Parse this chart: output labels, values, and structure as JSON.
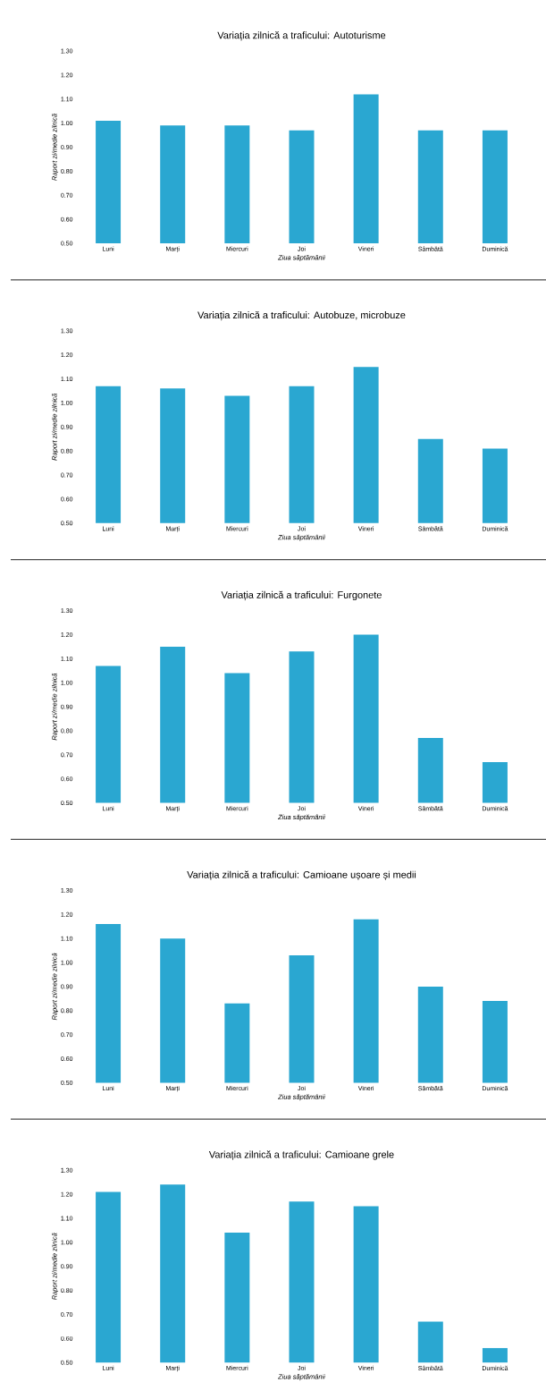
{
  "chart_data": [
    {
      "type": "bar",
      "title": "Variația zilnică a traficului: Autoturisme",
      "xlabel": "Ziua săptămânii",
      "ylabel": "Raport zi/medie zilnică",
      "categories": [
        "Luni",
        "Marți",
        "Miercuri",
        "Joi",
        "Vineri",
        "Sâmbătă",
        "Duminică"
      ],
      "values": [
        1.01,
        0.99,
        0.99,
        0.97,
        1.12,
        0.97,
        0.97
      ],
      "color": "#2aa7d1",
      "ylim": [
        0.5,
        1.3
      ],
      "yticks": [
        {
          "value": 0.5,
          "label": "0.50"
        },
        {
          "value": 0.6,
          "label": "0.60"
        },
        {
          "value": 0.7,
          "label": "0.70"
        },
        {
          "value": 0.8,
          "label": "0.80"
        },
        {
          "value": 0.9,
          "label": "0.90"
        },
        {
          "value": 1.0,
          "label": "1.00"
        },
        {
          "value": 1.1,
          "label": "1.10"
        },
        {
          "value": 1.2,
          "label": "1.20"
        },
        {
          "value": 1.3,
          "label": "1.30"
        }
      ],
      "grid": false
    },
    {
      "type": "bar",
      "title": "Variația zilnică a traficului: Autobuze, microbuze",
      "xlabel": "Ziua săptămânii",
      "ylabel": "Raport zi/medie zilnică",
      "categories": [
        "Luni",
        "Marți",
        "Miercuri",
        "Joi",
        "Vineri",
        "Sâmbătă",
        "Duminică"
      ],
      "values": [
        1.07,
        1.06,
        1.03,
        1.07,
        1.15,
        0.85,
        0.81
      ],
      "color": "#2aa7d1",
      "ylim": [
        0.5,
        1.3
      ],
      "yticks": [
        {
          "value": 0.5,
          "label": "0.50"
        },
        {
          "value": 0.6,
          "label": "0.60"
        },
        {
          "value": 0.7,
          "label": "0.70"
        },
        {
          "value": 0.8,
          "label": "0.80"
        },
        {
          "value": 0.9,
          "label": "0.90"
        },
        {
          "value": 1.0,
          "label": "1.00"
        },
        {
          "value": 1.1,
          "label": "1.10"
        },
        {
          "value": 1.2,
          "label": "1.20"
        },
        {
          "value": 1.3,
          "label": "1.30"
        }
      ],
      "grid": false
    },
    {
      "type": "bar",
      "title": "Variația zilnică a traficului: Furgonete",
      "xlabel": "Ziua săptămânii",
      "ylabel": "Raport zi/medie zilnică",
      "categories": [
        "Luni",
        "Marți",
        "Miercuri",
        "Joi",
        "Vineri",
        "Sâmbătă",
        "Duminică"
      ],
      "values": [
        1.07,
        1.15,
        1.04,
        1.13,
        1.2,
        0.77,
        0.67
      ],
      "color": "#2aa7d1",
      "ylim": [
        0.5,
        1.3
      ],
      "yticks": [
        {
          "value": 0.5,
          "label": "0.50"
        },
        {
          "value": 0.6,
          "label": "0.60"
        },
        {
          "value": 0.7,
          "label": "0.70"
        },
        {
          "value": 0.8,
          "label": "0.80"
        },
        {
          "value": 0.9,
          "label": "0.90"
        },
        {
          "value": 1.0,
          "label": "1.00"
        },
        {
          "value": 1.1,
          "label": "1.10"
        },
        {
          "value": 1.2,
          "label": "1.20"
        },
        {
          "value": 1.3,
          "label": "1.30"
        }
      ],
      "grid": false
    },
    {
      "type": "bar",
      "title": "Variația zilnică a traficului: Camioane ușoare și medii",
      "xlabel": "Ziua săptămânii",
      "ylabel": "Raport zi/medie zilnică",
      "categories": [
        "Luni",
        "Marți",
        "Miercuri",
        "Joi",
        "Vineri",
        "Sâmbătă",
        "Duminică"
      ],
      "values": [
        1.16,
        1.1,
        0.83,
        1.03,
        1.18,
        0.9,
        0.84
      ],
      "color": "#2aa7d1",
      "ylim": [
        0.5,
        1.3
      ],
      "yticks": [
        {
          "value": 0.5,
          "label": "0.50"
        },
        {
          "value": 0.6,
          "label": "0.60"
        },
        {
          "value": 0.7,
          "label": "0.70"
        },
        {
          "value": 0.8,
          "label": "0.80"
        },
        {
          "value": 0.9,
          "label": "0.90"
        },
        {
          "value": 1.0,
          "label": "1.00"
        },
        {
          "value": 1.1,
          "label": "1.10"
        },
        {
          "value": 1.2,
          "label": "1.20"
        },
        {
          "value": 1.3,
          "label": "1.30"
        }
      ],
      "grid": false
    },
    {
      "type": "bar",
      "title": "Variația zilnică a traficului: Camioane grele",
      "xlabel": "Ziua săptămânii",
      "ylabel": "Raport zi/medie zilnică",
      "categories": [
        "Luni",
        "Marți",
        "Miercuri",
        "Joi",
        "Vineri",
        "Sâmbătă",
        "Duminică"
      ],
      "values": [
        1.21,
        1.24,
        1.04,
        1.17,
        1.15,
        0.67,
        0.56
      ],
      "color": "#2aa7d1",
      "ylim": [
        0.5,
        1.3
      ],
      "yticks": [
        {
          "value": 0.5,
          "label": "0.50"
        },
        {
          "value": 0.6,
          "label": "0.60"
        },
        {
          "value": 0.7,
          "label": "0.70"
        },
        {
          "value": 0.8,
          "label": "0.80"
        },
        {
          "value": 0.9,
          "label": "0.90"
        },
        {
          "value": 1.0,
          "label": "1.00"
        },
        {
          "value": 1.1,
          "label": "1.10"
        },
        {
          "value": 1.2,
          "label": "1.20"
        },
        {
          "value": 1.3,
          "label": "1.30"
        }
      ],
      "grid": false
    }
  ]
}
